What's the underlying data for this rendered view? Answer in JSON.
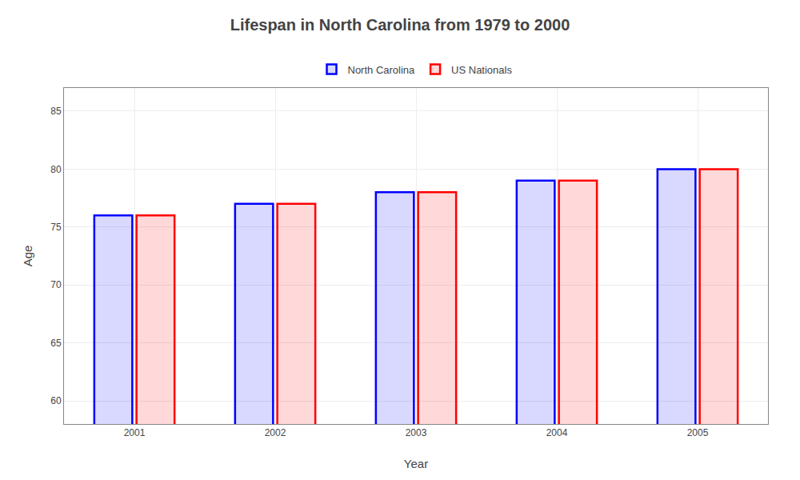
{
  "chart_data": {
    "type": "bar",
    "title": "Lifespan in North Carolina from 1979 to 2000",
    "xlabel": "Year",
    "ylabel": "Age",
    "categories": [
      "2001",
      "2002",
      "2003",
      "2004",
      "2005"
    ],
    "series": [
      {
        "name": "North Carolina",
        "color": "#0000ff",
        "values": [
          76,
          77,
          78,
          79,
          80
        ]
      },
      {
        "name": "US Nationals",
        "color": "#ff0000",
        "values": [
          76,
          77,
          78,
          79,
          80
        ]
      }
    ],
    "ylim": [
      58,
      87
    ],
    "yticks": [
      60,
      65,
      70,
      75,
      80,
      85
    ],
    "grid": true,
    "legend": "upper center"
  }
}
